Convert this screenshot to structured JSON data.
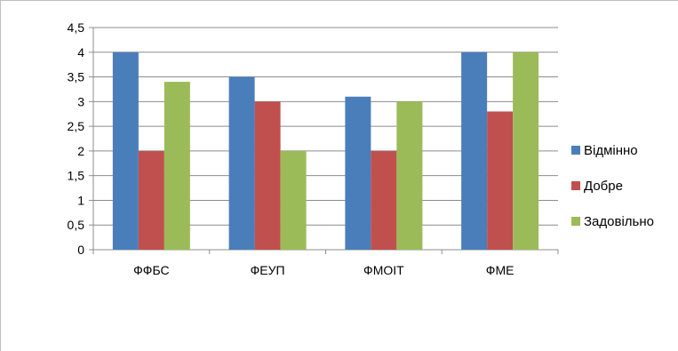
{
  "chart_data": {
    "type": "bar",
    "categories": [
      "ФФБС",
      "ФЕУП",
      "ФМОІТ",
      "ФМЕ"
    ],
    "series": [
      {
        "name": "Відмінно",
        "values": [
          4,
          3.5,
          3.1,
          4
        ],
        "color": "#4a7ebb"
      },
      {
        "name": "Добре",
        "values": [
          2,
          3,
          2,
          2.8
        ],
        "color": "#c0504d"
      },
      {
        "name": "Задовільно",
        "values": [
          3.4,
          2,
          3,
          4
        ],
        "color": "#9bbb59"
      }
    ],
    "ylim": [
      0,
      4.5
    ],
    "yticks": [
      "0",
      "0,5",
      "1",
      "1,5",
      "2",
      "2,5",
      "3",
      "3,5",
      "4",
      "4,5"
    ],
    "grid": true,
    "legend_position": "right"
  }
}
